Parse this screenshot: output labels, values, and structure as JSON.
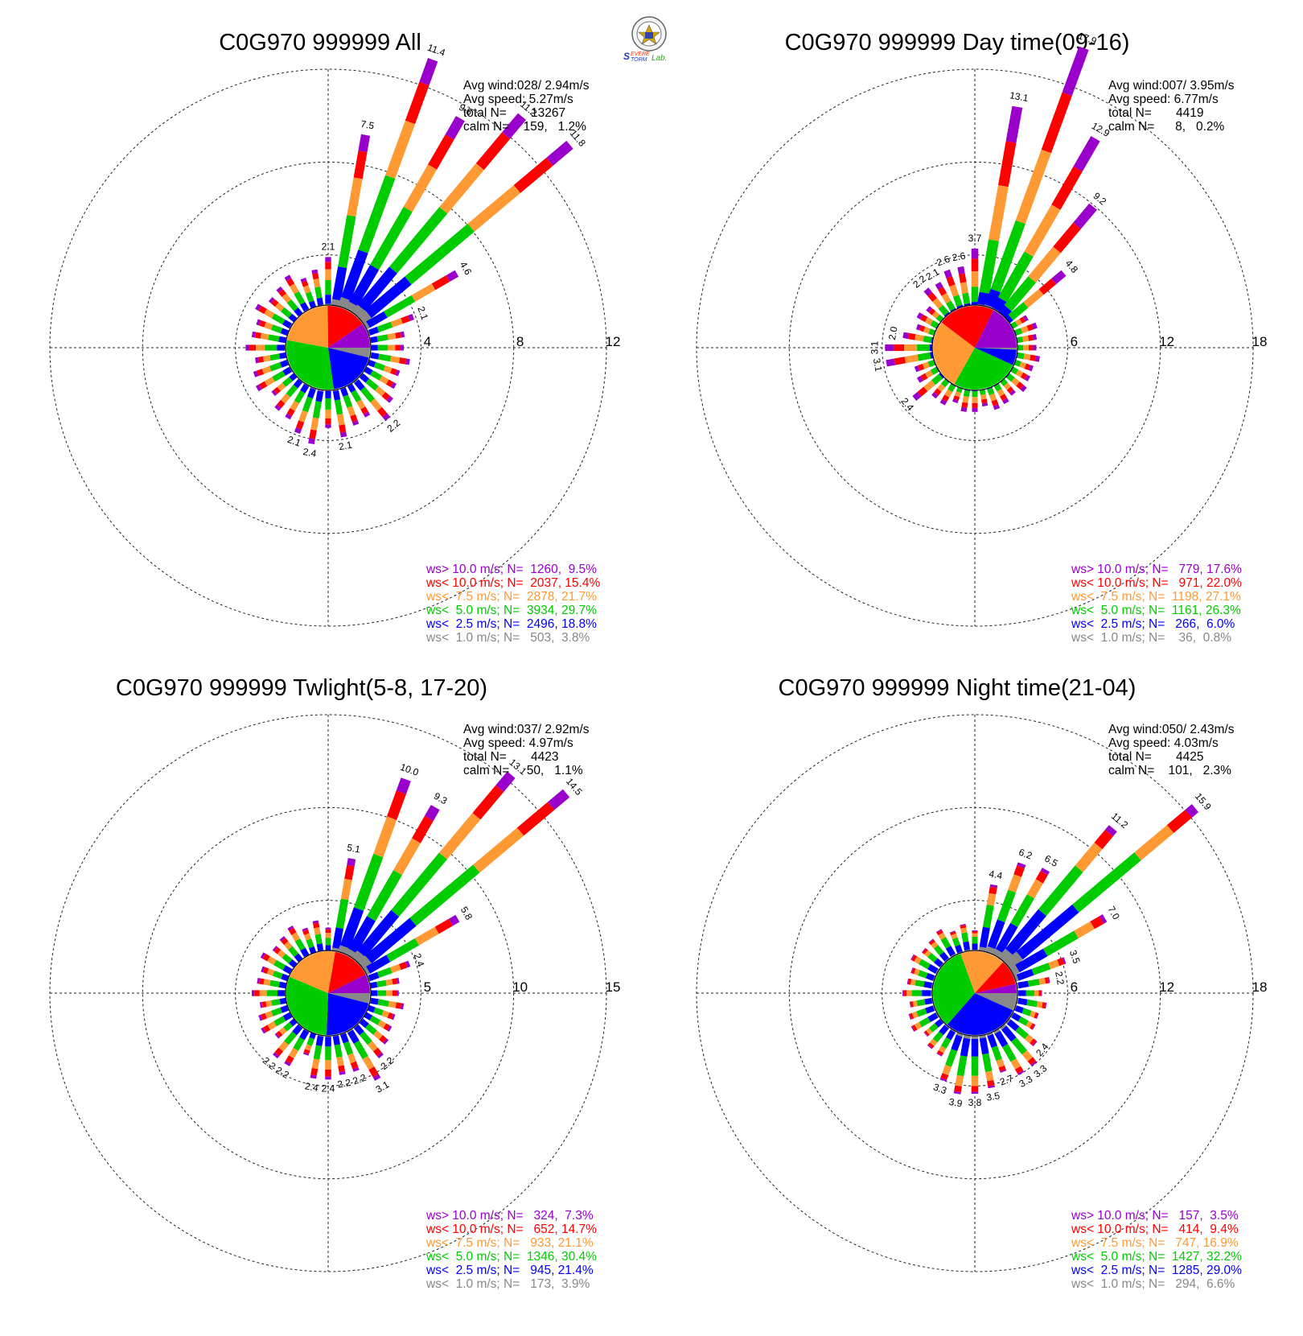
{
  "colors": {
    "gt10": "#9900cc",
    "lt10": "#ff0000",
    "lt7_5": "#ff9933",
    "lt5": "#00cc00",
    "lt2_5": "#0000ff",
    "lt1": "#888888"
  },
  "logo": {
    "brand": "Severe Storm Lab."
  },
  "chart_data": [
    {
      "type": "wind-rose",
      "title": "C0G970 999999 All",
      "rings": [
        4,
        8,
        12
      ],
      "stats": [
        "Avg wind:028/ 2.94m/s",
        "Avg speed: 5.27m/s",
        "total N=       13267",
        "calm N=    159,   1.2%"
      ],
      "legend": [
        {
          "text": "ws> 10.0 m/s; N=  1260,  9.5%",
          "color": "#9900cc"
        },
        {
          "text": "ws< 10.0 m/s; N=  2037, 15.4%",
          "color": "#ff0000"
        },
        {
          "text": "ws<  7.5 m/s; N=  2878, 21.7%",
          "color": "#ff9933"
        },
        {
          "text": "ws<  5.0 m/s; N=  3934, 29.7%",
          "color": "#00cc00"
        },
        {
          "text": "ws<  2.5 m/s; N=  2496, 18.8%",
          "color": "#0000ff"
        },
        {
          "text": "ws<  1.0 m/s; N=   503,  3.8%",
          "color": "#888888"
        }
      ],
      "pie": [
        3.8,
        18.8,
        29.7,
        21.7,
        15.4,
        9.5
      ],
      "spokes": [
        {
          "dir": 0,
          "total": 2.1,
          "label": "2.1"
        },
        {
          "dir": 10,
          "total": 7.5,
          "label": "7.5"
        },
        {
          "dir": 20,
          "total": 11.4,
          "label": "11.4"
        },
        {
          "dir": 30,
          "total": 9.6,
          "label": "9.6"
        },
        {
          "dir": 40,
          "total": 11.2,
          "label": "11.2"
        },
        {
          "dir": 50,
          "total": 11.8,
          "label": "11.8"
        },
        {
          "dir": 60,
          "total": 4.6,
          "label": "4.6"
        },
        {
          "dir": 70,
          "total": 2.1,
          "label": "2.1"
        },
        {
          "dir": 140,
          "total": 2.2,
          "label": "2.2"
        },
        {
          "dir": 170,
          "total": 2.1,
          "label": "2.1"
        },
        {
          "dir": 190,
          "total": 2.4,
          "label": "2.4"
        },
        {
          "dir": 200,
          "total": 2.1,
          "label": "2.1"
        }
      ],
      "default_total": 1.6
    },
    {
      "type": "wind-rose",
      "title": "C0G970 999999 Day time(09-16)",
      "rings": [
        6,
        12,
        18
      ],
      "stats": [
        "Avg wind:007/ 3.95m/s",
        "Avg speed: 6.77m/s",
        "total N=       4419",
        "calm N=      8,   0.2%"
      ],
      "legend": [
        {
          "text": "ws> 10.0 m/s; N=   779, 17.6%",
          "color": "#9900cc"
        },
        {
          "text": "ws< 10.0 m/s; N=   971, 22.0%",
          "color": "#ff0000"
        },
        {
          "text": "ws<  7.5 m/s; N=  1198, 27.1%",
          "color": "#ff9933"
        },
        {
          "text": "ws<  5.0 m/s; N=  1161, 26.3%",
          "color": "#00cc00"
        },
        {
          "text": "ws<  2.5 m/s; N=   266,  6.0%",
          "color": "#0000ff"
        },
        {
          "text": "ws<  1.0 m/s; N=    36,  0.8%",
          "color": "#888888"
        }
      ],
      "pie": [
        0.8,
        6.0,
        26.3,
        27.1,
        22.0,
        17.6
      ],
      "spokes": [
        {
          "dir": 0,
          "total": 3.7,
          "label": "3.7"
        },
        {
          "dir": 10,
          "total": 13.1,
          "label": "13.1"
        },
        {
          "dir": 20,
          "total": 17.9,
          "label": "17.9"
        },
        {
          "dir": 30,
          "total": 12.9,
          "label": "12.9"
        },
        {
          "dir": 40,
          "total": 9.2,
          "label": "9.2"
        },
        {
          "dir": 50,
          "total": 4.8,
          "label": "4.8"
        },
        {
          "dir": 230,
          "total": 2.4,
          "label": "2.4"
        },
        {
          "dir": 260,
          "total": 3.1,
          "label": "3.1"
        },
        {
          "dir": 270,
          "total": 3.1,
          "label": "3.1"
        },
        {
          "dir": 280,
          "total": 2.0,
          "label": "2.0"
        },
        {
          "dir": 320,
          "total": 2.2,
          "label": "2.2"
        },
        {
          "dir": 330,
          "total": 2.1,
          "label": "2.1"
        },
        {
          "dir": 340,
          "total": 2.6,
          "label": "2.6"
        },
        {
          "dir": 350,
          "total": 2.6,
          "label": "2.6"
        }
      ],
      "default_total": 1.4
    },
    {
      "type": "wind-rose",
      "title": "C0G970 999999 Twlight(5-8, 17-20)",
      "rings": [
        5,
        10,
        15
      ],
      "stats": [
        "Avg wind:037/ 2.92m/s",
        "Avg speed: 4.97m/s",
        "total N=       4423",
        "calm N=     50,   1.1%"
      ],
      "legend": [
        {
          "text": "ws> 10.0 m/s; N=   324,  7.3%",
          "color": "#9900cc"
        },
        {
          "text": "ws< 10.0 m/s; N=   652, 14.7%",
          "color": "#ff0000"
        },
        {
          "text": "ws<  7.5 m/s; N=   933, 21.1%",
          "color": "#ff9933"
        },
        {
          "text": "ws<  5.0 m/s; N=  1346, 30.4%",
          "color": "#00cc00"
        },
        {
          "text": "ws<  2.5 m/s; N=   945, 21.4%",
          "color": "#0000ff"
        },
        {
          "text": "ws<  1.0 m/s; N=   173,  3.9%",
          "color": "#888888"
        }
      ],
      "pie": [
        3.9,
        21.4,
        30.4,
        21.1,
        14.7,
        7.3
      ],
      "spokes": [
        {
          "dir": 10,
          "total": 5.1,
          "label": "5.1"
        },
        {
          "dir": 20,
          "total": 10.0,
          "label": "10.0"
        },
        {
          "dir": 30,
          "total": 9.3,
          "label": "9.3"
        },
        {
          "dir": 40,
          "total": 13.1,
          "label": "13.1"
        },
        {
          "dir": 50,
          "total": 14.5,
          "label": "14.5"
        },
        {
          "dir": 60,
          "total": 5.8,
          "label": "5.8"
        },
        {
          "dir": 70,
          "total": 2.4,
          "label": "2.4"
        },
        {
          "dir": 140,
          "total": 2.2,
          "label": "2.2"
        },
        {
          "dir": 150,
          "total": 3.1,
          "label": "3.1"
        },
        {
          "dir": 160,
          "total": 2.2,
          "label": "2.2"
        },
        {
          "dir": 170,
          "total": 2.2,
          "label": "2.2"
        },
        {
          "dir": 180,
          "total": 2.4,
          "label": "2.4"
        },
        {
          "dir": 190,
          "total": 2.4,
          "label": "2.4"
        },
        {
          "dir": 210,
          "total": 2.2,
          "label": "2.2"
        },
        {
          "dir": 220,
          "total": 2.2,
          "label": "2.2"
        }
      ],
      "default_total": 1.7
    },
    {
      "type": "wind-rose",
      "title": "C0G970 999999 Night time(21-04)",
      "rings": [
        6,
        12,
        18
      ],
      "stats": [
        "Avg wind:050/ 2.43m/s",
        "Avg speed: 4.03m/s",
        "total N=       4425",
        "calm N=    101,   2.3%"
      ],
      "legend": [
        {
          "text": "ws> 10.0 m/s; N=   157,  3.5%",
          "color": "#9900cc"
        },
        {
          "text": "ws< 10.0 m/s; N=   414,  9.4%",
          "color": "#ff0000"
        },
        {
          "text": "ws<  7.5 m/s; N=   747, 16.9%",
          "color": "#ff9933"
        },
        {
          "text": "ws<  5.0 m/s; N=  1427, 32.2%",
          "color": "#00cc00"
        },
        {
          "text": "ws<  2.5 m/s; N=  1285, 29.0%",
          "color": "#0000ff"
        },
        {
          "text": "ws<  1.0 m/s; N=   294,  6.6%",
          "color": "#888888"
        }
      ],
      "pie": [
        6.6,
        29.0,
        32.2,
        16.9,
        9.4,
        3.5
      ],
      "spokes": [
        {
          "dir": 10,
          "total": 4.4,
          "label": "4.4"
        },
        {
          "dir": 20,
          "total": 6.2,
          "label": "6.2"
        },
        {
          "dir": 30,
          "total": 6.5,
          "label": "6.5"
        },
        {
          "dir": 40,
          "total": 11.2,
          "label": "11.2"
        },
        {
          "dir": 50,
          "total": 15.9,
          "label": "15.9"
        },
        {
          "dir": 60,
          "total": 7.0,
          "label": "7.0"
        },
        {
          "dir": 70,
          "total": 3.5,
          "label": "3.5"
        },
        {
          "dir": 80,
          "total": 2.2,
          "label": "2.2"
        },
        {
          "dir": 130,
          "total": 2.4,
          "label": "2.4"
        },
        {
          "dir": 140,
          "total": 3.3,
          "label": "3.3"
        },
        {
          "dir": 150,
          "total": 3.3,
          "label": "3.3"
        },
        {
          "dir": 160,
          "total": 2.7,
          "label": "2.7"
        },
        {
          "dir": 170,
          "total": 3.5,
          "label": "3.5"
        },
        {
          "dir": 180,
          "total": 3.8,
          "label": "3.8"
        },
        {
          "dir": 190,
          "total": 3.9,
          "label": "3.9"
        },
        {
          "dir": 200,
          "total": 3.3,
          "label": "3.3"
        }
      ],
      "default_total": 1.8
    }
  ]
}
